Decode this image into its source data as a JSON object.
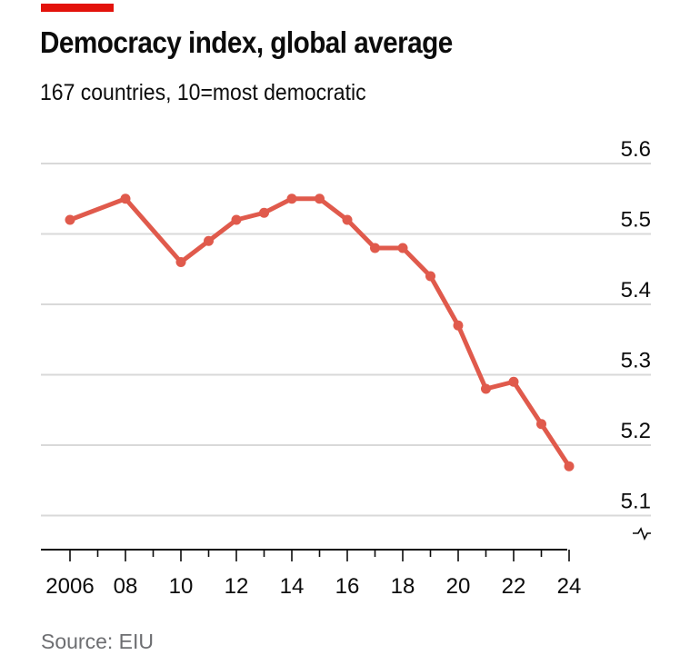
{
  "header": {
    "title": "Democracy index, global average",
    "subtitle": "167 countries, 10=most democratic"
  },
  "footer": {
    "source": "Source: EIU"
  },
  "colors": {
    "accent": "#e3120b",
    "line": "#e05a4c",
    "grid": "#d9d9d9",
    "axis": "#0c0c0c"
  },
  "chart_data": {
    "type": "line",
    "title": "Democracy index, global average",
    "subtitle": "167 countries, 10=most democratic",
    "xlabel": "",
    "ylabel": "",
    "x": [
      2006,
      2008,
      2010,
      2011,
      2012,
      2013,
      2014,
      2015,
      2016,
      2017,
      2018,
      2019,
      2020,
      2021,
      2022,
      2023,
      2024
    ],
    "series": [
      {
        "name": "Global average",
        "values": [
          5.52,
          5.55,
          5.46,
          5.49,
          5.52,
          5.53,
          5.55,
          5.55,
          5.52,
          5.48,
          5.48,
          5.44,
          5.37,
          5.28,
          5.29,
          5.23,
          5.17
        ]
      }
    ],
    "xlim": [
      2006,
      2024
    ],
    "ylim": [
      5.1,
      5.6
    ],
    "y_ticks": [
      5.6,
      5.5,
      5.4,
      5.3,
      5.2,
      5.1
    ],
    "y_tick_labels": [
      "5.6",
      "5.5",
      "5.4",
      "5.3",
      "5.2",
      "5.1"
    ],
    "x_ticks": [
      2006,
      2008,
      2010,
      2012,
      2014,
      2016,
      2018,
      2020,
      2022,
      2024
    ],
    "x_tick_labels": [
      "2006",
      "08",
      "10",
      "12",
      "14",
      "16",
      "18",
      "20",
      "22",
      "24"
    ],
    "y_axis_position": "right",
    "y_axis_break": true,
    "grid": true,
    "source": "Source: EIU"
  }
}
